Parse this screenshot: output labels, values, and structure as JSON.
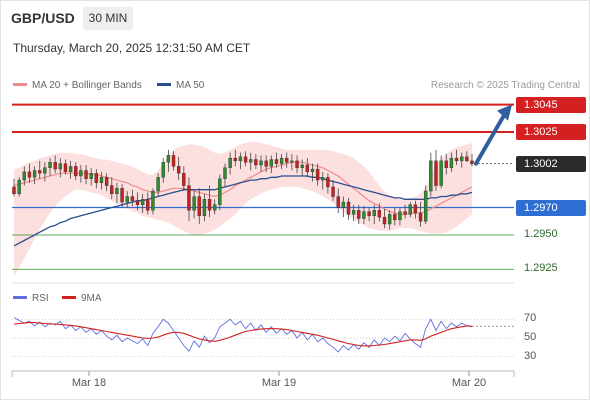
{
  "header": {
    "pair": "GBP/USD",
    "timeframe": "30 MIN"
  },
  "datetime": "Thursday, March 20, 2025 12:31:50 AM CET",
  "legend": {
    "bb_label": "MA 20 + Bollinger Bands",
    "bb_color": "#f08a8a",
    "ma50_label": "MA 50",
    "ma50_color": "#2a4f8f"
  },
  "credit": "Research © 2025 Trading Central",
  "levels": [
    {
      "value": "1.3045",
      "kind": "resistance",
      "color": "#d42020"
    },
    {
      "value": "1.3025",
      "kind": "resistance",
      "color": "#d42020"
    },
    {
      "value": "1.3002",
      "kind": "last",
      "color": "#2b2b2b"
    },
    {
      "value": "1.2970",
      "kind": "pivot",
      "color": "#2f6fd4"
    },
    {
      "value": "1.2950",
      "kind": "support",
      "color": "#2d8a2d"
    },
    {
      "value": "1.2925",
      "kind": "support",
      "color": "#2d8a2d"
    }
  ],
  "rsi_legend": {
    "rsi_label": "RSI",
    "rsi_color": "#6070e0",
    "ma_label": "9MA",
    "ma_color": "#d42020"
  },
  "rsi_ticks": [
    "70",
    "50",
    "30"
  ],
  "x_ticks": [
    "Mar 18",
    "Mar 19",
    "Mar 20"
  ],
  "chart_data": {
    "type": "candlestick",
    "price_range": [
      1.2915,
      1.3052
    ],
    "rsi_range": [
      20,
      80
    ],
    "x_labels": [
      "Mar 18",
      "Mar 19",
      "Mar 20"
    ],
    "projection": {
      "from": 1.3002,
      "to": 1.3045
    },
    "candles": [
      [
        1.2985,
        1.2991,
        1.2978,
        1.298
      ],
      [
        1.298,
        1.2992,
        1.2978,
        1.299
      ],
      [
        1.299,
        1.3,
        1.2986,
        1.2996
      ],
      [
        1.2996,
        1.3002,
        1.2988,
        1.2992
      ],
      [
        1.2992,
        1.3,
        1.2987,
        1.2997
      ],
      [
        1.2997,
        1.3004,
        1.2991,
        1.2995
      ],
      [
        1.2995,
        1.3003,
        1.2989,
        1.2999
      ],
      [
        1.2999,
        1.3006,
        1.2993,
        1.3003
      ],
      [
        1.3003,
        1.3008,
        1.2995,
        1.2998
      ],
      [
        1.2998,
        1.3006,
        1.2992,
        1.3002
      ],
      [
        1.3002,
        1.3005,
        1.2994,
        1.2996
      ],
      [
        1.2996,
        1.3004,
        1.2991,
        1.3
      ],
      [
        1.3,
        1.3003,
        1.299,
        1.2993
      ],
      [
        1.2993,
        1.3001,
        1.2988,
        1.2997
      ],
      [
        1.2997,
        1.3001,
        1.2987,
        1.2991
      ],
      [
        1.2991,
        1.2999,
        1.2986,
        1.2995
      ],
      [
        1.2995,
        1.2998,
        1.2984,
        1.2988
      ],
      [
        1.2988,
        1.2996,
        1.2983,
        1.2992
      ],
      [
        1.2992,
        1.2995,
        1.2982,
        1.2986
      ],
      [
        1.2986,
        1.2992,
        1.2976,
        1.298
      ],
      [
        1.298,
        1.2988,
        1.2973,
        1.2984
      ],
      [
        1.2984,
        1.2987,
        1.297,
        1.2974
      ],
      [
        1.2974,
        1.2982,
        1.297,
        1.2978
      ],
      [
        1.2978,
        1.2983,
        1.2971,
        1.2975
      ],
      [
        1.2975,
        1.2981,
        1.2968,
        1.2972
      ],
      [
        1.2972,
        1.298,
        1.2966,
        1.2976
      ],
      [
        1.2976,
        1.2981,
        1.2965,
        1.2968
      ],
      [
        1.2968,
        1.2984,
        1.2965,
        1.2982
      ],
      [
        1.2982,
        1.2995,
        1.2978,
        1.2992
      ],
      [
        1.2992,
        1.3006,
        1.2988,
        1.3003
      ],
      [
        1.3003,
        1.3012,
        1.2996,
        1.3008
      ],
      [
        1.3008,
        1.3011,
        1.2997,
        1.3
      ],
      [
        1.3,
        1.3007,
        1.299,
        1.2995
      ],
      [
        1.2995,
        1.3,
        1.2982,
        1.2986
      ],
      [
        1.2986,
        1.2992,
        1.296,
        1.2968
      ],
      [
        1.2968,
        1.2982,
        1.2962,
        1.2978
      ],
      [
        1.2978,
        1.2984,
        1.2958,
        1.2964
      ],
      [
        1.2964,
        1.298,
        1.296,
        1.2976
      ],
      [
        1.2976,
        1.2986,
        1.2963,
        1.2968
      ],
      [
        1.2968,
        1.2976,
        1.2965,
        1.2972
      ],
      [
        1.2972,
        1.2994,
        1.2968,
        1.2991
      ],
      [
        1.2991,
        1.3002,
        1.2985,
        1.2999
      ],
      [
        1.2999,
        1.301,
        1.2994,
        1.3006
      ],
      [
        1.3006,
        1.3012,
        1.3,
        1.3004
      ],
      [
        1.3004,
        1.301,
        1.2998,
        1.3007
      ],
      [
        1.3007,
        1.3011,
        1.3,
        1.3003
      ],
      [
        1.3003,
        1.301,
        1.2997,
        1.3005
      ],
      [
        1.3005,
        1.3009,
        1.2998,
        1.3001
      ],
      [
        1.3001,
        1.3008,
        1.2996,
        1.3004
      ],
      [
        1.3004,
        1.3008,
        1.2996,
        1.3
      ],
      [
        1.3,
        1.3008,
        1.2995,
        1.3005
      ],
      [
        1.3005,
        1.301,
        1.2999,
        1.3002
      ],
      [
        1.3002,
        1.3009,
        1.2998,
        1.3006
      ],
      [
        1.3006,
        1.301,
        1.2999,
        1.3003
      ],
      [
        1.3003,
        1.3009,
        1.2997,
        1.3004
      ],
      [
        1.3004,
        1.3008,
        1.2995,
        1.2999
      ],
      [
        1.2999,
        1.3005,
        1.2993,
        1.3001
      ],
      [
        1.3001,
        1.3006,
        1.2992,
        1.2996
      ],
      [
        1.2996,
        1.3002,
        1.2989,
        1.2998
      ],
      [
        1.2998,
        1.3002,
        1.2986,
        1.299
      ],
      [
        1.299,
        1.2996,
        1.2983,
        1.2992
      ],
      [
        1.2992,
        1.2995,
        1.298,
        1.2985
      ],
      [
        1.2985,
        1.299,
        1.2975,
        1.2978
      ],
      [
        1.2978,
        1.2984,
        1.2966,
        1.297
      ],
      [
        1.297,
        1.2978,
        1.2963,
        1.2974
      ],
      [
        1.2974,
        1.2977,
        1.2961,
        1.2965
      ],
      [
        1.2965,
        1.2972,
        1.296,
        1.2968
      ],
      [
        1.2968,
        1.2972,
        1.2958,
        1.2962
      ],
      [
        1.2962,
        1.2971,
        1.2958,
        1.2967
      ],
      [
        1.2967,
        1.297,
        1.296,
        1.2964
      ],
      [
        1.2964,
        1.2972,
        1.2958,
        1.2968
      ],
      [
        1.2968,
        1.2973,
        1.296,
        1.2963
      ],
      [
        1.2963,
        1.2969,
        1.2955,
        1.2958
      ],
      [
        1.2958,
        1.2968,
        1.2954,
        1.2965
      ],
      [
        1.2965,
        1.297,
        1.2957,
        1.2961
      ],
      [
        1.2961,
        1.297,
        1.2957,
        1.2967
      ],
      [
        1.2967,
        1.2972,
        1.2962,
        1.2965
      ],
      [
        1.2965,
        1.2974,
        1.2963,
        1.2972
      ],
      [
        1.2972,
        1.2975,
        1.2962,
        1.2966
      ],
      [
        1.2966,
        1.2974,
        1.2956,
        1.296
      ],
      [
        1.296,
        1.2986,
        1.2958,
        1.2982
      ],
      [
        1.2982,
        1.301,
        1.2978,
        1.3004
      ],
      [
        1.3004,
        1.3012,
        1.2982,
        1.2986
      ],
      [
        1.2986,
        1.3008,
        1.2984,
        1.3004
      ],
      [
        1.3004,
        1.3009,
        1.2994,
        1.2999
      ],
      [
        1.2999,
        1.301,
        1.2996,
        1.3006
      ],
      [
        1.3006,
        1.3012,
        1.3001,
        1.3004
      ],
      [
        1.3004,
        1.301,
        1.2999,
        1.3007
      ],
      [
        1.3007,
        1.3011,
        1.3003,
        1.3004
      ],
      [
        1.3004,
        1.3009,
        1.3,
        1.3002
      ]
    ],
    "ma20": [
      1.2986,
      1.2987,
      1.2988,
      1.2989,
      1.299,
      1.2991,
      1.2992,
      1.2993,
      1.2994,
      1.2995,
      1.2995,
      1.2995,
      1.2995,
      1.2995,
      1.2995,
      1.2994,
      1.2994,
      1.2993,
      1.2992,
      1.2991,
      1.299,
      1.2989,
      1.2988,
      1.2986,
      1.2985,
      1.2983,
      1.2982,
      1.2981,
      1.2981,
      1.2982,
      1.2983,
      1.2984,
      1.2984,
      1.2984,
      1.2983,
      1.2982,
      1.2981,
      1.298,
      1.2979,
      1.2978,
      1.2979,
      1.2981,
      1.2983,
      1.2986,
      1.2988,
      1.299,
      1.2992,
      1.2994,
      1.2996,
      1.2998,
      1.2999,
      1.3,
      1.3001,
      1.3002,
      1.3003,
      1.3003,
      1.3003,
      1.3002,
      1.3001,
      1.3,
      1.2999,
      1.2997,
      1.2995,
      1.2993,
      1.299,
      1.2987,
      1.2984,
      1.2981,
      1.2978,
      1.2975,
      1.2973,
      1.2971,
      1.2969,
      1.2967,
      1.2966,
      1.2965,
      1.2965,
      1.2966,
      1.2966,
      1.2966,
      1.2967,
      1.2969,
      1.2971,
      1.2973,
      1.2975,
      1.2977,
      1.2979,
      1.2981,
      1.2983,
      1.2985
    ],
    "bb_upper": [
      1.2998,
      1.2999,
      1.3001,
      1.3003,
      1.3004,
      1.3006,
      1.3007,
      1.3008,
      1.3009,
      1.301,
      1.301,
      1.301,
      1.3009,
      1.3009,
      1.3008,
      1.3007,
      1.3006,
      1.3005,
      1.3005,
      1.3004,
      1.3003,
      1.3002,
      1.3001,
      1.3,
      1.2998,
      1.2996,
      1.2994,
      1.2994,
      1.2997,
      1.3002,
      1.3008,
      1.3012,
      1.3014,
      1.3015,
      1.3016,
      1.3016,
      1.3015,
      1.3014,
      1.3012,
      1.301,
      1.3009,
      1.301,
      1.3012,
      1.3014,
      1.3016,
      1.3017,
      1.3018,
      1.3018,
      1.3017,
      1.3016,
      1.3015,
      1.3014,
      1.3013,
      1.3012,
      1.3012,
      1.3012,
      1.3012,
      1.3012,
      1.3012,
      1.3012,
      1.3012,
      1.3012,
      1.3011,
      1.301,
      1.3009,
      1.3008,
      1.3006,
      1.3003,
      1.3,
      1.2996,
      1.2991,
      1.2986,
      1.2982,
      1.2979,
      1.2977,
      1.2976,
      1.2976,
      1.2977,
      1.2978,
      1.298,
      1.2985,
      1.2993,
      1.3001,
      1.3006,
      1.3009,
      1.3012,
      1.3014,
      1.3015,
      1.3016,
      1.3017
    ],
    "bb_lower": [
      1.292,
      1.2926,
      1.2933,
      1.294,
      1.2947,
      1.2954,
      1.296,
      1.2966,
      1.2971,
      1.2975,
      1.2978,
      1.2981,
      1.2983,
      1.2983,
      1.2982,
      1.2981,
      1.298,
      1.2979,
      1.2977,
      1.2975,
      1.2973,
      1.2971,
      1.2969,
      1.2967,
      1.2966,
      1.2964,
      1.2963,
      1.2962,
      1.2961,
      1.296,
      1.2959,
      1.2957,
      1.2955,
      1.2953,
      1.2951,
      1.295,
      1.295,
      1.2951,
      1.2952,
      1.2954,
      1.2956,
      1.2959,
      1.2962,
      1.2965,
      1.2969,
      1.2973,
      1.2976,
      1.2978,
      1.298,
      1.2982,
      1.2983,
      1.2984,
      1.2985,
      1.2985,
      1.2985,
      1.2985,
      1.2984,
      1.2983,
      1.2982,
      1.298,
      1.2978,
      1.2976,
      1.2973,
      1.297,
      1.2967,
      1.2964,
      1.2961,
      1.2959,
      1.2957,
      1.2955,
      1.2954,
      1.2953,
      1.2953,
      1.2953,
      1.2954,
      1.2955,
      1.2955,
      1.2955,
      1.2954,
      1.2953,
      1.2952,
      1.2951,
      1.2951,
      1.2951,
      1.2952,
      1.2954,
      1.2956,
      1.2959,
      1.2962,
      1.2965
    ],
    "ma50": [
      1.2942,
      1.2944,
      1.2946,
      1.2948,
      1.295,
      1.2952,
      1.2954,
      1.2956,
      1.2957,
      1.2959,
      1.296,
      1.2962,
      1.2963,
      1.2964,
      1.2965,
      1.2966,
      1.2967,
      1.2968,
      1.2969,
      1.297,
      1.2971,
      1.2972,
      1.2973,
      1.2974,
      1.2975,
      1.2975,
      1.2976,
      1.2977,
      1.2978,
      1.2979,
      1.298,
      1.2981,
      1.2982,
      1.2983,
      1.2983,
      1.2983,
      1.2983,
      1.2983,
      1.2983,
      1.2983,
      1.2984,
      1.2985,
      1.2986,
      1.2987,
      1.2988,
      1.2989,
      1.299,
      1.299,
      1.2991,
      1.2991,
      1.2992,
      1.2992,
      1.2993,
      1.2993,
      1.2993,
      1.2993,
      1.2993,
      1.2993,
      1.2992,
      1.2992,
      1.2991,
      1.299,
      1.2989,
      1.2988,
      1.2987,
      1.2986,
      1.2985,
      1.2984,
      1.2983,
      1.2982,
      1.2981,
      1.298,
      1.2979,
      1.2978,
      1.2977,
      1.2977,
      1.2976,
      1.2976,
      1.2976,
      1.2976,
      1.2976,
      1.2977,
      1.2977,
      1.2978,
      1.2978,
      1.2979,
      1.2979,
      1.298,
      1.298,
      1.2981
    ],
    "rsi": [
      72,
      69,
      66,
      68,
      63,
      67,
      62,
      66,
      64,
      68,
      60,
      64,
      58,
      62,
      56,
      60,
      54,
      58,
      52,
      48,
      53,
      46,
      50,
      47,
      44,
      49,
      42,
      55,
      62,
      70,
      66,
      58,
      50,
      42,
      36,
      47,
      40,
      52,
      45,
      50,
      62,
      66,
      70,
      64,
      68,
      60,
      66,
      58,
      64,
      56,
      62,
      55,
      60,
      54,
      58,
      50,
      56,
      48,
      54,
      46,
      50,
      44,
      40,
      35,
      42,
      37,
      43,
      38,
      45,
      40,
      48,
      42,
      50,
      46,
      52,
      47,
      55,
      49,
      44,
      40,
      60,
      70,
      58,
      68,
      60,
      66,
      62,
      66,
      63,
      62
    ],
    "rsi_ma": [
      65,
      65.5,
      66,
      66.5,
      66.5,
      66,
      65.5,
      65,
      65,
      64.5,
      64,
      63.5,
      63,
      62,
      61,
      60,
      59,
      58,
      57,
      56,
      55,
      54,
      53,
      52,
      51,
      50,
      49.5,
      50,
      51,
      53,
      55,
      56,
      56,
      55,
      53,
      51,
      49,
      48,
      47,
      46.5,
      47.5,
      49,
      51,
      53,
      55,
      57,
      58,
      59,
      59.5,
      60,
      60,
      60,
      59.5,
      59,
      58,
      57,
      56,
      55,
      54,
      53,
      51.5,
      50,
      48.5,
      47,
      45.5,
      44,
      43,
      42,
      41.5,
      41.5,
      42,
      42.5,
      43,
      44,
      45,
      46,
      47,
      48,
      48,
      47.5,
      49,
      52,
      54,
      56,
      58,
      60,
      61,
      62,
      63,
      62.5
    ]
  }
}
